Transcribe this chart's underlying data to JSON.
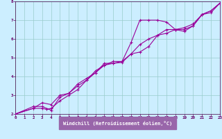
{
  "xlabel": "Windchill (Refroidissement éolien,°C)",
  "bg_color": "#cceeff",
  "line_color": "#990099",
  "grid_color": "#99cccc",
  "xmin": 0,
  "xmax": 23,
  "ymin": 2,
  "ymax": 8,
  "xlabel_bg": "#9966aa",
  "series1_x": [
    0,
    2,
    3,
    3.5,
    4,
    5,
    6,
    7,
    8,
    9,
    10,
    11,
    12,
    13,
    14,
    15,
    16,
    17,
    18,
    19,
    20,
    21,
    22,
    23
  ],
  "series1_y": [
    2.0,
    2.3,
    2.3,
    2.25,
    2.3,
    2.7,
    3.0,
    3.3,
    3.8,
    4.2,
    4.6,
    4.7,
    4.8,
    5.8,
    7.0,
    7.0,
    7.0,
    6.9,
    6.5,
    6.4,
    6.7,
    7.3,
    7.5,
    7.9
  ],
  "series2_x": [
    0,
    2,
    3,
    4,
    5,
    6,
    7,
    8,
    9,
    10,
    11,
    12,
    13,
    14,
    15,
    16,
    17,
    18,
    19,
    20,
    21,
    22,
    23
  ],
  "series2_y": [
    2.0,
    2.4,
    2.4,
    2.2,
    2.9,
    3.1,
    3.5,
    3.8,
    4.3,
    4.6,
    4.8,
    4.8,
    5.2,
    5.3,
    5.6,
    6.2,
    6.3,
    6.5,
    6.5,
    6.7,
    7.3,
    7.5,
    7.9
  ],
  "series3_x": [
    0,
    2,
    3,
    4,
    5,
    6,
    7,
    8,
    9,
    10,
    11,
    12,
    13,
    14,
    15,
    16,
    17,
    18,
    19,
    20,
    21,
    22,
    23
  ],
  "series3_y": [
    2.0,
    2.3,
    2.6,
    2.5,
    3.0,
    3.1,
    3.6,
    3.9,
    4.2,
    4.7,
    4.7,
    4.75,
    5.2,
    5.7,
    6.0,
    6.2,
    6.5,
    6.5,
    6.6,
    6.8,
    7.3,
    7.4,
    7.9
  ]
}
